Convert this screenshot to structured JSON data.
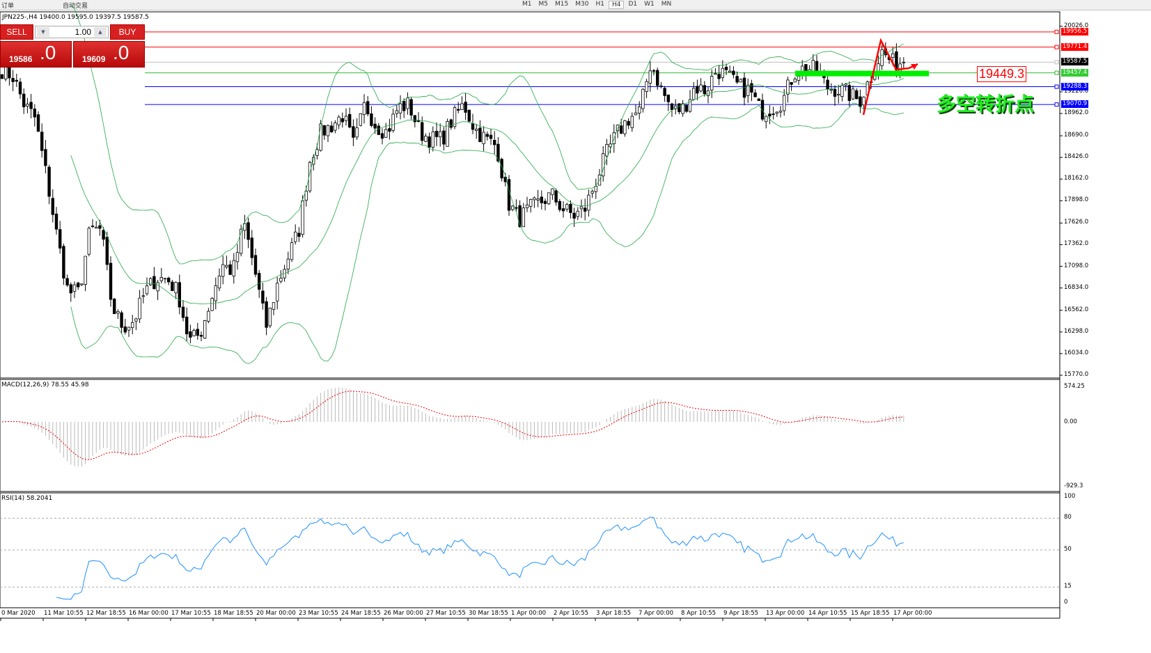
{
  "toolbar": {
    "new_order": "订单",
    "auto_trading": "自动交易",
    "timeframes": [
      "M1",
      "M5",
      "M15",
      "M30",
      "H1",
      "H4",
      "D1",
      "W1",
      "MN"
    ],
    "active_timeframe": "H4"
  },
  "chart_header": "JPN225-,H4  19400.0 19595.0 19397.5 19587.5",
  "trade_panel": {
    "sell_label": "SELL",
    "buy_label": "BUY",
    "volume": "1.00",
    "sell_price_main": "19586",
    "sell_price_frac": ".0",
    "buy_price_main": "19609",
    "buy_price_frac": ".0"
  },
  "price_axis": [
    "20026.0",
    "19226.0",
    "18962.0",
    "18690.0",
    "18426.0",
    "18162.0",
    "17898.0",
    "17626.0",
    "17362.0",
    "17098.0",
    "16834.0",
    "16562.0",
    "16298.0",
    "16034.0",
    "15770.0"
  ],
  "levels": [
    {
      "price": "19956.5",
      "color": "#ff0000"
    },
    {
      "price": "19771.4",
      "color": "#ff0000"
    },
    {
      "price": "19587.5",
      "color": "#000000",
      "line": "#c0c0c0"
    },
    {
      "price": "19457.4",
      "color": "#33bb33"
    },
    {
      "price": "19288.3",
      "color": "#0000ff"
    },
    {
      "price": "19070.9",
      "color": "#0000ff"
    }
  ],
  "annotation": {
    "price_box": "19449.3",
    "text": "多空转折点",
    "zone_color": "#00ee00"
  },
  "macd": {
    "label": "MACD(12,26,9) 78.55 45.98",
    "axis": [
      "574.25",
      "0.00",
      "-929.3"
    ]
  },
  "rsi": {
    "label": "RSI(14) 58.2041",
    "axis": [
      "100",
      "80",
      "50",
      "15",
      "0"
    ]
  },
  "time_axis": [
    "0 Mar 2020",
    "11 Mar 10:55",
    "12 Mar 18:55",
    "16 Mar 00:00",
    "17 Mar 10:55",
    "18 Mar 18:55",
    "20 Mar 00:00",
    "23 Mar 10:55",
    "24 Mar 18:55",
    "26 Mar 00:00",
    "27 Mar 10:55",
    "30 Mar 18:55",
    "1 Apr 00:00",
    "2 Apr 10:55",
    "3 Apr 18:55",
    "7 Apr 00:00",
    "8 Apr 10:55",
    "9 Apr 18:55",
    "13 Apr 00:00",
    "14 Apr 10:55",
    "15 Apr 18:55",
    "17 Apr 00:00"
  ],
  "chart_data": {
    "type": "candlestick",
    "symbol": "JPN225-",
    "timeframe": "H4",
    "approx_closes": [
      19497,
      19412,
      19072,
      18903,
      18223,
      17459,
      16780,
      16780,
      17544,
      17544,
      16610,
      16356,
      16440,
      16780,
      16950,
      16950,
      16780,
      16186,
      16270,
      16695,
      17120,
      17035,
      17629,
      17035,
      16356,
      16865,
      17205,
      17544,
      18393,
      18733,
      18818,
      18945,
      18563,
      19072,
      18818,
      18733,
      19030,
      19072,
      18733,
      18648,
      18648,
      18903,
      19072,
      18775,
      18648,
      18563,
      17884,
      17672,
      17799,
      17884,
      17969,
      17799,
      17714,
      17799,
      18139,
      18478,
      18733,
      18903,
      18987,
      19582,
      19242,
      18987,
      19030,
      19285,
      19242,
      19497,
      19412,
      19285,
      19242,
      18987,
      19030,
      19115,
      19455,
      19514,
      19497,
      19285,
      19260,
      19200,
      19115,
      19412,
      19709,
      19582,
      19587
    ]
  }
}
